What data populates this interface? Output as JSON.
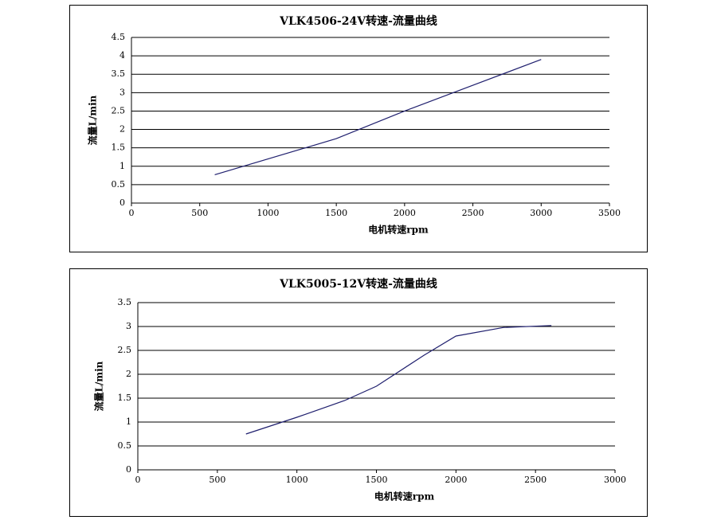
{
  "chart_data": [
    {
      "type": "line",
      "title": "VLK4506-24V转速-流量曲线",
      "x_label": "电机转速rpm",
      "y_label": "流量L/min",
      "x": [
        610,
        1000,
        1500,
        2000,
        2500,
        3000
      ],
      "values": [
        0.77,
        1.2,
        1.75,
        2.5,
        3.2,
        3.9
      ],
      "color": "#1f1f6e",
      "xlim": [
        0,
        3500
      ],
      "xticks": [
        0,
        500,
        1000,
        1500,
        2000,
        2500,
        3000,
        3500
      ],
      "ylim": [
        0,
        4.5
      ],
      "yticks": [
        0,
        0.5,
        1,
        1.5,
        2,
        2.5,
        3,
        3.5,
        4,
        4.5
      ],
      "grid": true
    },
    {
      "type": "line",
      "title": "VLK5005-12V转速-流量曲线",
      "x_label": "电机转速rpm",
      "y_label": "流量L/min",
      "x": [
        680,
        1000,
        1300,
        1500,
        1800,
        2000,
        2300,
        2600
      ],
      "values": [
        0.75,
        1.1,
        1.45,
        1.75,
        2.4,
        2.8,
        2.98,
        3.02
      ],
      "color": "#1f1f6e",
      "xlim": [
        0,
        3000
      ],
      "xticks": [
        0,
        500,
        1000,
        1500,
        2000,
        2500,
        3000
      ],
      "ylim": [
        0,
        3.5
      ],
      "yticks": [
        0,
        0.5,
        1,
        1.5,
        2,
        2.5,
        3,
        3.5
      ],
      "grid": true
    }
  ]
}
